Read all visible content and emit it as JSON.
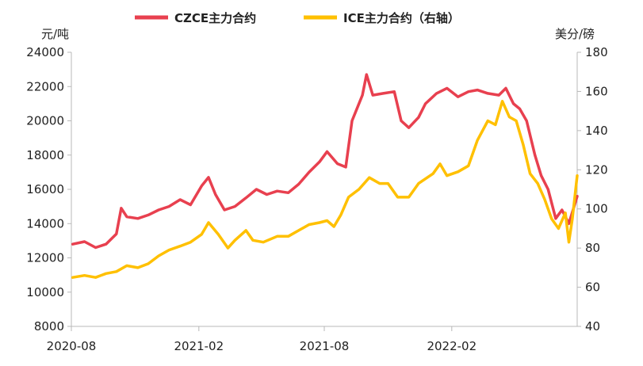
{
  "chart_data": {
    "type": "line",
    "title": "",
    "left_axis": {
      "unit": "元/吨",
      "ylim": [
        8000,
        24000
      ],
      "ticks": [
        8000,
        10000,
        12000,
        14000,
        16000,
        18000,
        20000,
        22000,
        24000
      ]
    },
    "right_axis": {
      "unit": "美分/磅",
      "ylim": [
        40,
        180
      ],
      "ticks": [
        40,
        60,
        80,
        100,
        120,
        140,
        160,
        180
      ]
    },
    "x_tick_labels": [
      "2020-08",
      "2021-02",
      "2021-08",
      "2022-02"
    ],
    "x_range": [
      "2020-08",
      "2022-08"
    ],
    "legend_position": "top",
    "grid": false,
    "series": [
      {
        "name": "CZCE主力合约",
        "axis": "left",
        "color": "#e8404f",
        "points": [
          [
            "2020-08-03",
            12800
          ],
          [
            "2020-08-20",
            12950
          ],
          [
            "2020-09-05",
            12600
          ],
          [
            "2020-09-20",
            12800
          ],
          [
            "2020-10-05",
            13400
          ],
          [
            "2020-10-12",
            14900
          ],
          [
            "2020-10-20",
            14400
          ],
          [
            "2020-11-05",
            14300
          ],
          [
            "2020-11-20",
            14500
          ],
          [
            "2020-12-05",
            14800
          ],
          [
            "2020-12-20",
            15000
          ],
          [
            "2021-01-05",
            15400
          ],
          [
            "2021-01-20",
            15100
          ],
          [
            "2021-02-05",
            16200
          ],
          [
            "2021-02-15",
            16700
          ],
          [
            "2021-02-25",
            15700
          ],
          [
            "2021-03-10",
            14800
          ],
          [
            "2021-03-25",
            15000
          ],
          [
            "2021-04-10",
            15500
          ],
          [
            "2021-04-25",
            16000
          ],
          [
            "2021-05-10",
            15700
          ],
          [
            "2021-05-25",
            15900
          ],
          [
            "2021-06-10",
            15800
          ],
          [
            "2021-06-25",
            16300
          ],
          [
            "2021-07-10",
            17000
          ],
          [
            "2021-07-25",
            17600
          ],
          [
            "2021-08-05",
            18200
          ],
          [
            "2021-08-20",
            17500
          ],
          [
            "2021-09-01",
            17300
          ],
          [
            "2021-09-10",
            20000
          ],
          [
            "2021-09-25",
            21500
          ],
          [
            "2021-10-01",
            22700
          ],
          [
            "2021-10-10",
            21500
          ],
          [
            "2021-10-25",
            21600
          ],
          [
            "2021-11-10",
            21700
          ],
          [
            "2021-11-20",
            20000
          ],
          [
            "2021-12-01",
            19600
          ],
          [
            "2021-12-15",
            20200
          ],
          [
            "2021-12-25",
            21000
          ],
          [
            "2022-01-10",
            21600
          ],
          [
            "2022-01-25",
            21900
          ],
          [
            "2022-02-10",
            21400
          ],
          [
            "2022-02-25",
            21700
          ],
          [
            "2022-03-10",
            21800
          ],
          [
            "2022-03-25",
            21600
          ],
          [
            "2022-04-10",
            21500
          ],
          [
            "2022-04-20",
            21900
          ],
          [
            "2022-05-01",
            21000
          ],
          [
            "2022-05-10",
            20700
          ],
          [
            "2022-05-20",
            20000
          ],
          [
            "2022-06-01",
            18000
          ],
          [
            "2022-06-10",
            16800
          ],
          [
            "2022-06-20",
            16000
          ],
          [
            "2022-07-01",
            14300
          ],
          [
            "2022-07-10",
            14800
          ],
          [
            "2022-07-20",
            14000
          ],
          [
            "2022-08-01",
            15600
          ]
        ]
      },
      {
        "name": "ICE主力合约（右轴）",
        "axis": "right",
        "color": "#ffc000",
        "points": [
          [
            "2020-08-03",
            65
          ],
          [
            "2020-08-20",
            66
          ],
          [
            "2020-09-05",
            65
          ],
          [
            "2020-09-20",
            67
          ],
          [
            "2020-10-05",
            68
          ],
          [
            "2020-10-20",
            71
          ],
          [
            "2020-11-05",
            70
          ],
          [
            "2020-11-20",
            72
          ],
          [
            "2020-12-05",
            76
          ],
          [
            "2020-12-20",
            79
          ],
          [
            "2021-01-05",
            81
          ],
          [
            "2021-01-20",
            83
          ],
          [
            "2021-02-05",
            87
          ],
          [
            "2021-02-15",
            93
          ],
          [
            "2021-03-01",
            87
          ],
          [
            "2021-03-15",
            80
          ],
          [
            "2021-03-25",
            84
          ],
          [
            "2021-04-10",
            89
          ],
          [
            "2021-04-20",
            84
          ],
          [
            "2021-05-05",
            83
          ],
          [
            "2021-05-25",
            86
          ],
          [
            "2021-06-10",
            86
          ],
          [
            "2021-06-25",
            89
          ],
          [
            "2021-07-10",
            92
          ],
          [
            "2021-07-25",
            93
          ],
          [
            "2021-08-05",
            94
          ],
          [
            "2021-08-15",
            91
          ],
          [
            "2021-08-25",
            97
          ],
          [
            "2021-09-05",
            106
          ],
          [
            "2021-09-20",
            110
          ],
          [
            "2021-10-05",
            116
          ],
          [
            "2021-10-20",
            113
          ],
          [
            "2021-11-01",
            113
          ],
          [
            "2021-11-15",
            106
          ],
          [
            "2021-12-01",
            106
          ],
          [
            "2021-12-15",
            113
          ],
          [
            "2022-01-05",
            118
          ],
          [
            "2022-01-15",
            123
          ],
          [
            "2022-01-25",
            117
          ],
          [
            "2022-02-10",
            119
          ],
          [
            "2022-02-25",
            122
          ],
          [
            "2022-03-10",
            135
          ],
          [
            "2022-03-25",
            145
          ],
          [
            "2022-04-05",
            143
          ],
          [
            "2022-04-15",
            155
          ],
          [
            "2022-04-25",
            147
          ],
          [
            "2022-05-05",
            145
          ],
          [
            "2022-05-15",
            133
          ],
          [
            "2022-05-25",
            118
          ],
          [
            "2022-06-05",
            113
          ],
          [
            "2022-06-15",
            105
          ],
          [
            "2022-06-25",
            95
          ],
          [
            "2022-07-05",
            90
          ],
          [
            "2022-07-15",
            98
          ],
          [
            "2022-07-20",
            83
          ],
          [
            "2022-07-25",
            95
          ],
          [
            "2022-08-01",
            117
          ]
        ]
      }
    ]
  }
}
